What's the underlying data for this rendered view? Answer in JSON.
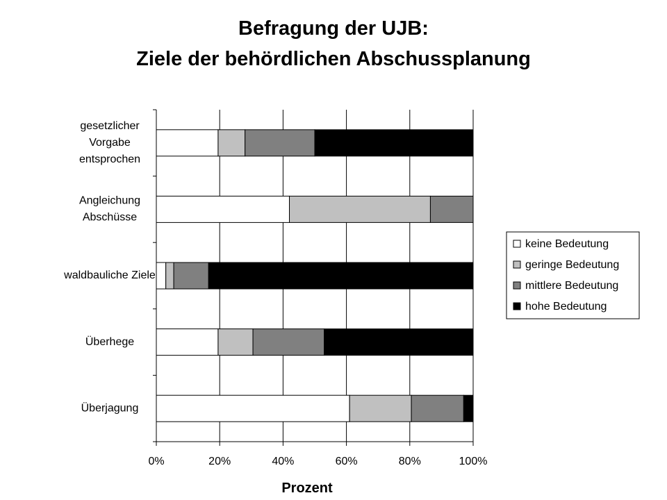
{
  "title_line1": "Befragung der UJB:",
  "title_line2": "Ziele der behördlichen Abschussplanung",
  "chart_data": {
    "type": "bar",
    "orientation": "horizontal",
    "stacked": "percent",
    "categories": [
      [
        "gesetzlicher",
        "Vorgabe",
        "entsprochen"
      ],
      [
        "Angleichung",
        "Abschüsse"
      ],
      [
        "waldbauliche  Ziele"
      ],
      [
        "Überhege"
      ],
      [
        "Überjagung"
      ]
    ],
    "series": [
      {
        "name": "keine Bedeutung",
        "color": "#ffffff",
        "values": [
          19.5,
          42,
          3,
          19.5,
          61
        ]
      },
      {
        "name": "geringe Bedeutung",
        "color": "#c0c0c0",
        "values": [
          8.5,
          44.5,
          2.5,
          11,
          19.5
        ]
      },
      {
        "name": "mittlere Bedeutung",
        "color": "#808080",
        "values": [
          22,
          13.5,
          11,
          22.5,
          16.5
        ]
      },
      {
        "name": "hohe Bedeutung",
        "color": "#000000",
        "values": [
          50,
          0,
          83.5,
          47,
          3
        ]
      }
    ],
    "xlabel": "Prozent",
    "xlim": [
      0,
      100
    ],
    "xticks": [
      "0%",
      "20%",
      "40%",
      "60%",
      "80%",
      "100%"
    ],
    "grid": "vertical",
    "legend_position": "right"
  }
}
